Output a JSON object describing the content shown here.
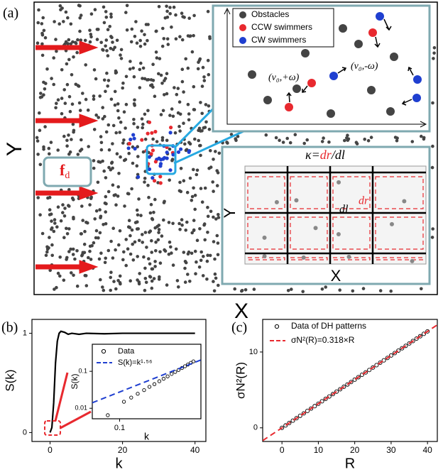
{
  "panel_a": {
    "label": "(a)",
    "y_label": "Y",
    "x_label": "X",
    "force": [
      "f",
      "d"
    ],
    "legend": [
      "Obstacles",
      "CCW swimmers",
      "CW swimmers"
    ],
    "ccw": "(v₀,+ω)",
    "cw": "(v₀,-ω)",
    "formula": [
      "κ=",
      "dr",
      "/dl"
    ],
    "dl": "dl",
    "dr": "dr",
    "inset_y": "Y",
    "inset_x": "X"
  },
  "chart_data": [
    {
      "type": "line",
      "panel_label": "(b)",
      "x_label": "k",
      "y_label": "S(k)",
      "xlim": [
        -5,
        43
      ],
      "ylim": [
        -0.09,
        1.14
      ],
      "xticks": [
        0,
        20,
        40
      ],
      "yticks": [
        0,
        1
      ],
      "series": [
        {
          "name": "S(k)",
          "color": "#000000",
          "style": "line",
          "x": [
            0,
            0.5,
            1,
            1.5,
            2,
            2.5,
            3,
            4,
            5,
            6,
            8,
            10,
            15,
            20,
            25,
            30,
            35,
            40
          ],
          "values": [
            0,
            0.05,
            0.3,
            0.7,
            0.92,
            1.0,
            1.02,
            1.01,
            0.99,
            1.0,
            0.99,
            1.0,
            0.995,
            1.0,
            1.0,
            1.0,
            1.0,
            1.0
          ]
        }
      ]
    },
    {
      "type": "scatter",
      "x_label": "k",
      "y_label": "S(k)",
      "xlog": true,
      "ylog": true,
      "xlim": [
        0.065,
        0.36
      ],
      "ylim": [
        0.0052,
        0.54
      ],
      "xticks": [
        0.1
      ],
      "yticks": [
        0.01,
        0.1
      ],
      "legend": "upper left",
      "series": [
        {
          "name": "Data",
          "color": "#000000",
          "style": "markers",
          "x": [
            0.083,
            0.107,
            0.12,
            0.133,
            0.147,
            0.16,
            0.173,
            0.187,
            0.2,
            0.213,
            0.227,
            0.24,
            0.253,
            0.267,
            0.28,
            0.293,
            0.307,
            0.32
          ],
          "values": [
            0.0065,
            0.015,
            0.0195,
            0.0247,
            0.031,
            0.038,
            0.045,
            0.054,
            0.063,
            0.073,
            0.085,
            0.096,
            0.109,
            0.123,
            0.137,
            0.152,
            0.169,
            0.186
          ]
        },
        {
          "name": "S(k)=k¹·⁵⁶",
          "color": "#1f3fd0",
          "style": "dashed",
          "x": [
            0.065,
            0.36
          ],
          "values": [
            0.0141,
            0.203
          ]
        }
      ]
    },
    {
      "type": "scatter",
      "panel_label": "(c)",
      "x_label": "R",
      "y_label": "σN²(R)",
      "xlim": [
        -5.3,
        42.7
      ],
      "ylim": [
        -1.8,
        14.3
      ],
      "xticks": [
        0,
        10,
        20,
        30,
        40
      ],
      "yticks": [
        0,
        10
      ],
      "legend": "upper left",
      "series": [
        {
          "name": "Data of DH patterns",
          "color": "#000000",
          "style": "markers",
          "x": [
            0,
            1,
            2,
            3,
            4,
            5,
            6,
            7,
            8,
            9,
            10,
            11,
            12,
            13,
            14,
            15,
            16,
            17,
            18,
            19,
            20,
            21,
            22,
            23,
            24,
            25,
            26,
            27,
            28,
            29,
            30,
            31,
            32,
            33,
            34,
            35,
            36,
            37,
            38,
            39,
            40
          ],
          "values": [
            0,
            0.32,
            0.64,
            0.95,
            1.27,
            1.59,
            1.91,
            2.23,
            2.54,
            2.86,
            3.18,
            3.5,
            3.82,
            4.13,
            4.45,
            4.77,
            5.09,
            5.41,
            5.72,
            6.04,
            6.36,
            6.68,
            7.0,
            7.31,
            7.63,
            7.95,
            8.27,
            8.59,
            8.9,
            9.22,
            9.54,
            9.86,
            10.18,
            10.49,
            10.81,
            11.13,
            11.45,
            11.77,
            12.08,
            12.4,
            12.72
          ]
        },
        {
          "name": "σN²(R)=0.318×R",
          "color": "#e8292f",
          "style": "dashed",
          "x": [
            -5.3,
            42.7
          ],
          "values": [
            -1.685,
            13.579
          ]
        }
      ]
    }
  ]
}
